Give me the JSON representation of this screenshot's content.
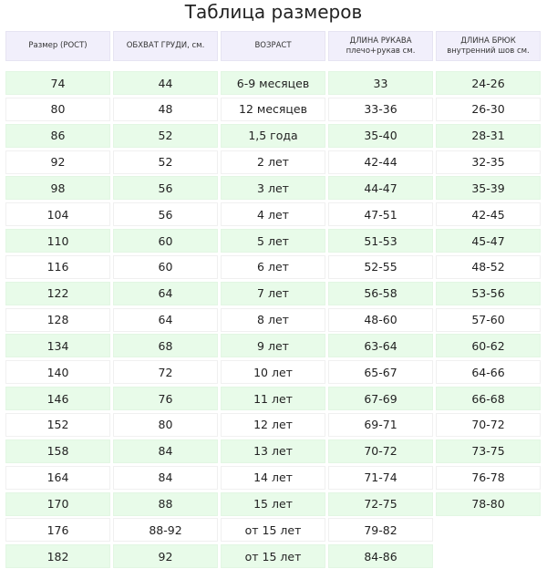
{
  "title": "Таблица размеров",
  "colors": {
    "header_bg": "#f1effb",
    "row_green": "#e8fbe9",
    "row_white": "#ffffff"
  },
  "headers": [
    {
      "line1": "Размер (РОСТ)",
      "line2": ""
    },
    {
      "line1": "ОБХВАТ ГРУДИ, см.",
      "line2": ""
    },
    {
      "line1": "ВОЗРАСТ",
      "line2": ""
    },
    {
      "line1": "ДЛИНА РУКАВА",
      "line2": "плечо+рукав см."
    },
    {
      "line1": "ДЛИНА БРЮК",
      "line2": "внутренний шов см."
    }
  ],
  "rows": [
    [
      "74",
      "44",
      "6-9 месяцев",
      "33",
      "24-26"
    ],
    [
      "80",
      "48",
      "12 месяцев",
      "33-36",
      "26-30"
    ],
    [
      "86",
      "52",
      "1,5 года",
      "35-40",
      "28-31"
    ],
    [
      "92",
      "52",
      "2 лет",
      "42-44",
      "32-35"
    ],
    [
      "98",
      "56",
      "3 лет",
      "44-47",
      "35-39"
    ],
    [
      "104",
      "56",
      "4 лет",
      "47-51",
      "42-45"
    ],
    [
      "110",
      "60",
      "5 лет",
      "51-53",
      "45-47"
    ],
    [
      "116",
      "60",
      "6 лет",
      "52-55",
      "48-52"
    ],
    [
      "122",
      "64",
      "7 лет",
      "56-58",
      "53-56"
    ],
    [
      "128",
      "64",
      "8 лет",
      "48-60",
      "57-60"
    ],
    [
      "134",
      "68",
      "9 лет",
      "63-64",
      "60-62"
    ],
    [
      "140",
      "72",
      "10 лет",
      "65-67",
      "64-66"
    ],
    [
      "146",
      "76",
      "11 лет",
      "67-69",
      "66-68"
    ],
    [
      "152",
      "80",
      "12 лет",
      "69-71",
      "70-72"
    ],
    [
      "158",
      "84",
      "13 лет",
      "70-72",
      "73-75"
    ],
    [
      "164",
      "84",
      "14 лет",
      "71-74",
      "76-78"
    ],
    [
      "170",
      "88",
      "15 лет",
      "72-75",
      "78-80"
    ],
    [
      "176",
      "88-92",
      "от 15 лет",
      "79-82",
      ""
    ],
    [
      "182",
      "92",
      "от 15 лет",
      "84-86",
      ""
    ]
  ]
}
